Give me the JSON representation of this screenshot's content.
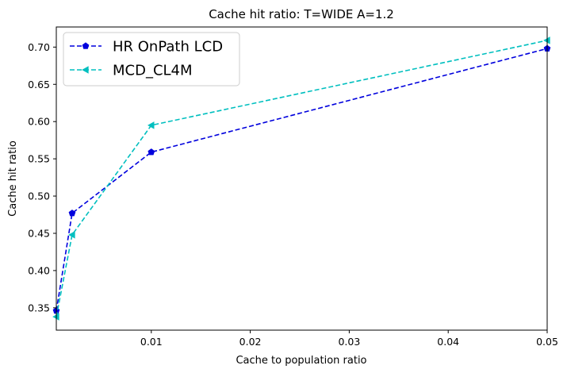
{
  "chart_data": {
    "type": "line",
    "title": "Cache hit ratio: T=WIDE A=1.2",
    "xlabel": "Cache to population ratio",
    "ylabel": "Cache hit ratio",
    "xlim": [
      0.0004,
      0.05
    ],
    "ylim": [
      0.32,
      0.727
    ],
    "xticks": [
      0.01,
      0.02,
      0.03,
      0.04,
      0.05
    ],
    "xtick_labels": [
      "0.01",
      "0.02",
      "0.03",
      "0.04",
      "0.05"
    ],
    "yticks": [
      0.35,
      0.4,
      0.45,
      0.5,
      0.55,
      0.6,
      0.65,
      0.7
    ],
    "ytick_labels": [
      "0.35",
      "0.40",
      "0.45",
      "0.50",
      "0.55",
      "0.60",
      "0.65",
      "0.70"
    ],
    "grid": false,
    "legend_position": "top-left",
    "series": [
      {
        "name": "HR OnPath LCD",
        "color": "#0000dd",
        "marker": "pentagon",
        "linestyle": "dashed",
        "x": [
          0.0004,
          0.002,
          0.01,
          0.05
        ],
        "y": [
          0.346,
          0.477,
          0.559,
          0.698
        ]
      },
      {
        "name": "MCD_CL4M",
        "color": "#00bfbf",
        "marker": "triangle-left",
        "linestyle": "dashed",
        "x": [
          0.0004,
          0.002,
          0.01,
          0.05
        ],
        "y": [
          0.338,
          0.448,
          0.595,
          0.709
        ]
      }
    ]
  }
}
